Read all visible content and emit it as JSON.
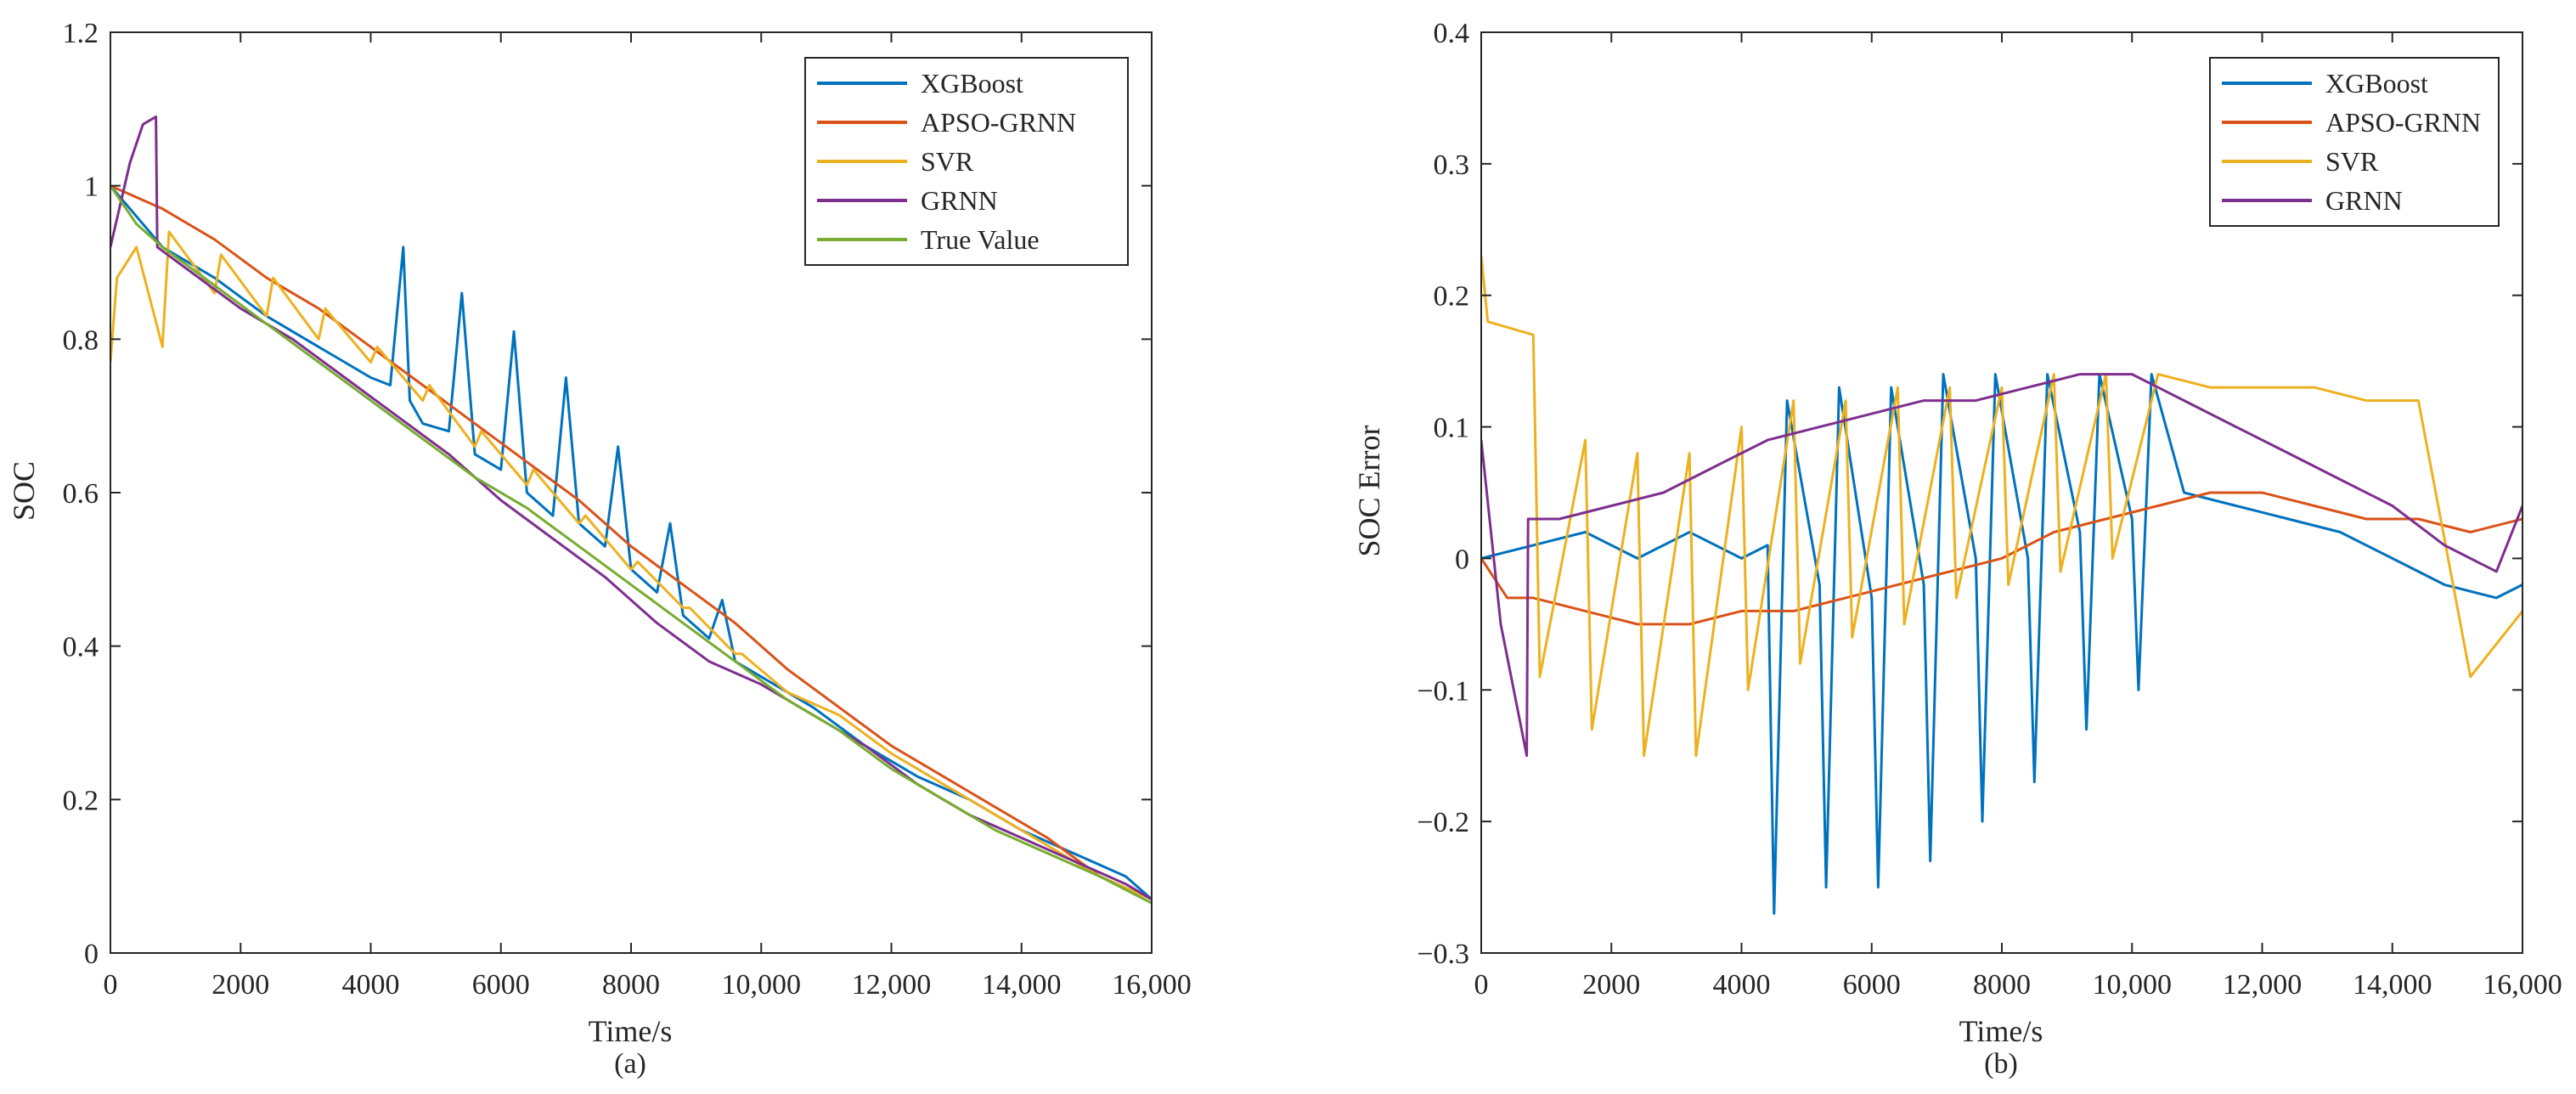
{
  "chart_data": [
    {
      "id": "a",
      "type": "line",
      "panel_label": "(a)",
      "xlabel": "Time/s",
      "ylabel": "SOC",
      "xlim": [
        0,
        16000
      ],
      "ylim": [
        0,
        1.2
      ],
      "xticks": [
        0,
        2000,
        4000,
        6000,
        8000,
        10000,
        12000,
        14000,
        16000
      ],
      "xtick_labels": [
        "0",
        "2000",
        "4000",
        "6000",
        "8000",
        "10,000",
        "12,000",
        "14,000",
        "16,000"
      ],
      "yticks": [
        0,
        0.2,
        0.4,
        0.6,
        0.8,
        1,
        1.2
      ],
      "ytick_labels": [
        "0",
        "0.2",
        "0.4",
        "0.6",
        "0.8",
        "1",
        "1.2"
      ],
      "legend_position": "top-right",
      "series": [
        {
          "name": "XGBoost",
          "color": "#0072BD",
          "x": [
            0,
            400,
            800,
            1600,
            2400,
            3200,
            4000,
            4300,
            4500,
            4600,
            4800,
            5200,
            5400,
            5600,
            6000,
            6200,
            6400,
            6800,
            7000,
            7200,
            7600,
            7800,
            8000,
            8400,
            8600,
            8800,
            9200,
            9400,
            9600,
            10000,
            10800,
            11600,
            12400,
            13200,
            14000,
            14800,
            15600,
            16000
          ],
          "y": [
            1.0,
            0.96,
            0.92,
            0.88,
            0.83,
            0.79,
            0.75,
            0.74,
            0.92,
            0.72,
            0.69,
            0.68,
            0.86,
            0.65,
            0.63,
            0.81,
            0.6,
            0.57,
            0.75,
            0.56,
            0.53,
            0.66,
            0.5,
            0.47,
            0.56,
            0.44,
            0.41,
            0.46,
            0.38,
            0.36,
            0.32,
            0.27,
            0.23,
            0.2,
            0.16,
            0.13,
            0.1,
            0.07
          ]
        },
        {
          "name": "APSO-GRNN",
          "color": "#D95319",
          "x": [
            0,
            800,
            1600,
            2400,
            3200,
            4000,
            4800,
            5600,
            6400,
            7200,
            8000,
            8800,
            9600,
            10400,
            11200,
            12000,
            12800,
            13600,
            14400,
            15200,
            16000
          ],
          "y": [
            1.0,
            0.97,
            0.93,
            0.88,
            0.84,
            0.79,
            0.74,
            0.69,
            0.64,
            0.59,
            0.53,
            0.48,
            0.43,
            0.37,
            0.32,
            0.27,
            0.23,
            0.19,
            0.15,
            0.1,
            0.07
          ]
        },
        {
          "name": "SVR",
          "color": "#EDB120",
          "x": [
            0,
            100,
            400,
            800,
            900,
            1600,
            1700,
            2400,
            2500,
            3200,
            3300,
            4000,
            4100,
            4800,
            4900,
            5600,
            5700,
            6400,
            6500,
            7200,
            7300,
            8000,
            8100,
            8800,
            8900,
            9600,
            9700,
            10400,
            11200,
            12000,
            12800,
            13600,
            14400,
            15200,
            16000
          ],
          "y": [
            0.77,
            0.88,
            0.92,
            0.79,
            0.94,
            0.86,
            0.91,
            0.83,
            0.88,
            0.8,
            0.84,
            0.77,
            0.79,
            0.72,
            0.74,
            0.66,
            0.68,
            0.61,
            0.63,
            0.56,
            0.57,
            0.5,
            0.51,
            0.45,
            0.45,
            0.39,
            0.39,
            0.34,
            0.31,
            0.26,
            0.22,
            0.18,
            0.14,
            0.1,
            0.07
          ]
        },
        {
          "name": "GRNN",
          "color": "#7E2F8E",
          "x": [
            0,
            300,
            500,
            700,
            720,
            1200,
            2000,
            2800,
            3600,
            4400,
            5200,
            6000,
            6800,
            7600,
            8400,
            9200,
            10000,
            10800,
            11600,
            12400,
            13200,
            14000,
            14800,
            15600,
            16000
          ],
          "y": [
            0.92,
            1.03,
            1.08,
            1.09,
            0.92,
            0.89,
            0.84,
            0.8,
            0.75,
            0.7,
            0.65,
            0.59,
            0.54,
            0.49,
            0.43,
            0.38,
            0.35,
            0.31,
            0.27,
            0.22,
            0.18,
            0.15,
            0.12,
            0.09,
            0.07
          ]
        },
        {
          "name": "True Value",
          "color": "#77AC30",
          "x": [
            0,
            400,
            800,
            1600,
            2400,
            3200,
            4000,
            4800,
            5600,
            6400,
            7200,
            8000,
            8800,
            9600,
            10400,
            11200,
            12000,
            12800,
            13600,
            14400,
            15200,
            16000
          ],
          "y": [
            1.0,
            0.95,
            0.92,
            0.87,
            0.82,
            0.77,
            0.72,
            0.67,
            0.62,
            0.58,
            0.53,
            0.48,
            0.43,
            0.38,
            0.33,
            0.29,
            0.24,
            0.2,
            0.16,
            0.13,
            0.1,
            0.065
          ]
        }
      ]
    },
    {
      "id": "b",
      "type": "line",
      "panel_label": "(b)",
      "xlabel": "Time/s",
      "ylabel": "SOC Error",
      "xlim": [
        0,
        16000
      ],
      "ylim": [
        -0.3,
        0.4
      ],
      "xticks": [
        0,
        2000,
        4000,
        6000,
        8000,
        10000,
        12000,
        14000,
        16000
      ],
      "xtick_labels": [
        "0",
        "2000",
        "4000",
        "6000",
        "8000",
        "10,000",
        "12,000",
        "14,000",
        "16,000"
      ],
      "yticks": [
        -0.3,
        -0.2,
        -0.1,
        0,
        0.1,
        0.2,
        0.3,
        0.4
      ],
      "ytick_labels": [
        "−0.3",
        "−0.2",
        "−0.1",
        "0",
        "0.1",
        "0.2",
        "0.3",
        "0.4"
      ],
      "legend_position": "top-right",
      "series": [
        {
          "name": "XGBoost",
          "color": "#0072BD",
          "x": [
            0,
            800,
            1600,
            2400,
            3200,
            4000,
            4400,
            4500,
            4700,
            5200,
            5300,
            5500,
            6000,
            6100,
            6300,
            6800,
            6900,
            7100,
            7600,
            7700,
            7900,
            8400,
            8500,
            8700,
            9200,
            9300,
            9500,
            10000,
            10100,
            10300,
            10800,
            11600,
            12400,
            13200,
            14000,
            14800,
            15600,
            16000
          ],
          "y": [
            0.0,
            0.01,
            0.02,
            0.0,
            0.02,
            0.0,
            0.01,
            -0.27,
            0.12,
            -0.02,
            -0.25,
            0.13,
            -0.03,
            -0.25,
            0.13,
            -0.02,
            -0.23,
            0.14,
            0.0,
            -0.2,
            0.14,
            0.0,
            -0.17,
            0.14,
            0.02,
            -0.13,
            0.14,
            0.03,
            -0.1,
            0.14,
            0.05,
            0.04,
            0.03,
            0.02,
            0.0,
            -0.02,
            -0.03,
            -0.02
          ]
        },
        {
          "name": "APSO-GRNN",
          "color": "#D95319",
          "x": [
            0,
            400,
            800,
            1600,
            2400,
            3200,
            4000,
            4800,
            5600,
            6400,
            7200,
            8000,
            8800,
            9600,
            10400,
            11200,
            12000,
            12800,
            13600,
            14400,
            15200,
            16000
          ],
          "y": [
            0.0,
            -0.03,
            -0.03,
            -0.04,
            -0.05,
            -0.05,
            -0.04,
            -0.04,
            -0.03,
            -0.02,
            -0.01,
            0.0,
            0.02,
            0.03,
            0.04,
            0.05,
            0.05,
            0.04,
            0.03,
            0.03,
            0.02,
            0.03
          ]
        },
        {
          "name": "SVR",
          "color": "#EDB120",
          "x": [
            0,
            100,
            800,
            900,
            1600,
            1700,
            2400,
            2500,
            3200,
            3300,
            4000,
            4100,
            4800,
            4900,
            5600,
            5700,
            6400,
            6500,
            7200,
            7300,
            8000,
            8100,
            8800,
            8900,
            9600,
            9700,
            10400,
            11200,
            12000,
            12800,
            13600,
            14400,
            15200,
            16000
          ],
          "y": [
            0.23,
            0.18,
            0.17,
            -0.09,
            0.09,
            -0.13,
            0.08,
            -0.15,
            0.08,
            -0.15,
            0.1,
            -0.1,
            0.12,
            -0.08,
            0.12,
            -0.06,
            0.13,
            -0.05,
            0.13,
            -0.03,
            0.13,
            -0.02,
            0.14,
            -0.01,
            0.14,
            0.0,
            0.14,
            0.13,
            0.13,
            0.13,
            0.12,
            0.12,
            -0.09,
            -0.04
          ]
        },
        {
          "name": "GRNN",
          "color": "#7E2F8E",
          "x": [
            0,
            300,
            700,
            720,
            1200,
            2000,
            2800,
            3600,
            4400,
            5200,
            6000,
            6800,
            7600,
            8400,
            9200,
            10000,
            10800,
            11600,
            12400,
            13200,
            14000,
            14800,
            15600,
            16000
          ],
          "y": [
            0.09,
            -0.05,
            -0.15,
            0.03,
            0.03,
            0.04,
            0.05,
            0.07,
            0.09,
            0.1,
            0.11,
            0.12,
            0.12,
            0.13,
            0.14,
            0.14,
            0.12,
            0.1,
            0.08,
            0.06,
            0.04,
            0.01,
            -0.01,
            0.04
          ]
        }
      ]
    }
  ]
}
